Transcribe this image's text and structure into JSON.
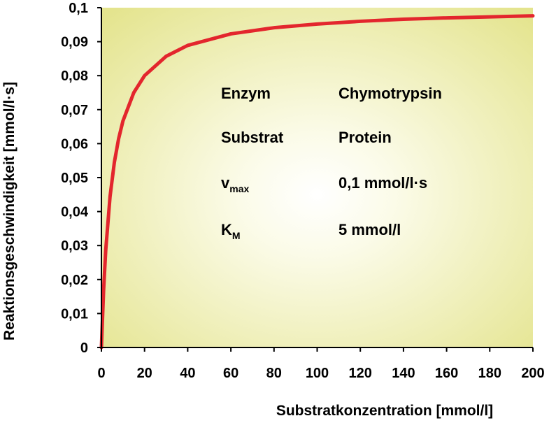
{
  "chart_data": {
    "type": "line",
    "xlabel": "Substratkonzentration [mmol/l]",
    "ylabel": "Reaktionsgeschwindigkeit [mmol/l·s]",
    "xlim": [
      0,
      200
    ],
    "ylim": [
      0,
      0.1
    ],
    "x_ticks": [
      "0",
      "20",
      "40",
      "60",
      "80",
      "100",
      "120",
      "140",
      "160",
      "180",
      "200"
    ],
    "y_ticks": [
      "0",
      "0,01",
      "0,02",
      "0,03",
      "0,04",
      "0,05",
      "0,06",
      "0,07",
      "0,08",
      "0,09",
      "0,1"
    ],
    "grid": false,
    "series": [
      {
        "color": "#e3262d",
        "x": [
          0,
          1,
          2,
          4,
          6,
          8,
          10,
          15,
          20,
          30,
          40,
          60,
          80,
          100,
          120,
          140,
          160,
          180,
          200
        ],
        "y": [
          0,
          0.0167,
          0.0286,
          0.0444,
          0.0545,
          0.0615,
          0.0667,
          0.075,
          0.08,
          0.0857,
          0.0889,
          0.0923,
          0.0941,
          0.0952,
          0.096,
          0.0966,
          0.097,
          0.0973,
          0.0976
        ]
      }
    ],
    "annotations": [
      {
        "label": "Enzym",
        "value": "Chymotrypsin"
      },
      {
        "label": "Substrat",
        "value": "Protein"
      },
      {
        "label": "v",
        "label_sub": "max",
        "value": "0,1 mmol/l·s"
      },
      {
        "label": "K",
        "label_sub": "M",
        "value": "5 mmol/l"
      }
    ],
    "background_colors": [
      "#ffffff",
      "#e4e48e"
    ]
  }
}
